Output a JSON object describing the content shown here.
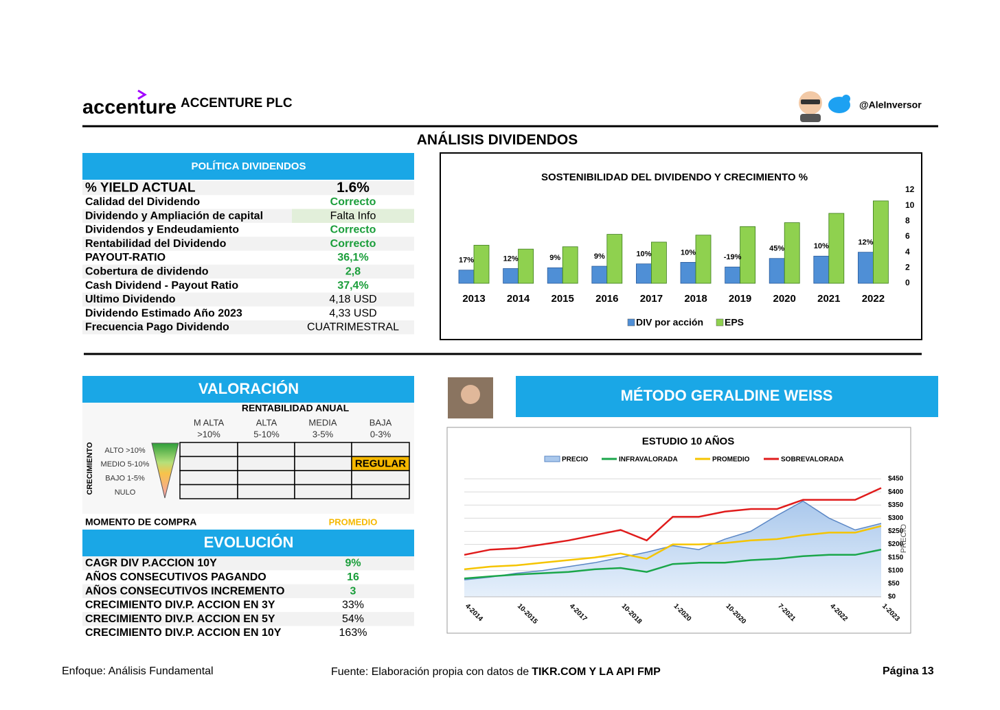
{
  "header": {
    "logo": "accenture",
    "company": "ACCENTURE PLC",
    "handle": "@AleInversor",
    "title": "ANÁLISIS DIVIDENDOS"
  },
  "policy": {
    "title": "POLÍTICA DIVIDENDOS",
    "rows": [
      [
        "% YIELD ACTUAL",
        "1.6%"
      ],
      [
        "Calidad del Dividendo",
        "Correcto"
      ],
      [
        "Dividendo y Ampliación de capital",
        "Falta Info"
      ],
      [
        "Dividendos y Endeudamiento",
        "Correcto"
      ],
      [
        "Rentabilidad del Dividendo",
        "Correcto"
      ],
      [
        "PAYOUT-RATIO",
        "36,1%"
      ],
      [
        "Cobertura de dividendo",
        "2,8"
      ],
      [
        "Cash Dividend - Payout Ratio",
        "37,4%"
      ],
      [
        "Ultimo Dividendo",
        "4,18 USD"
      ],
      [
        "Dividendo Estimado Año 2023",
        "4,33 USD"
      ],
      [
        "Frecuencia Pago Dividendo",
        "CUATRIMESTRAL"
      ]
    ]
  },
  "chart_data": [
    {
      "type": "bar",
      "title": "SOSTENIBILIDAD DEL DIVIDENDO Y CRECIMIENTO %",
      "categories": [
        "2013",
        "2014",
        "2015",
        "2016",
        "2017",
        "2018",
        "2019",
        "2020",
        "2021",
        "2022"
      ],
      "series": [
        {
          "name": "DIV por acción",
          "color": "#4f8fd6",
          "values": [
            1.7,
            1.9,
            2.0,
            2.2,
            2.5,
            2.7,
            2.1,
            3.2,
            3.5,
            4.0
          ]
        },
        {
          "name": "EPS",
          "color": "#8fd14f",
          "values": [
            4.9,
            4.4,
            4.7,
            6.3,
            5.3,
            6.2,
            7.3,
            7.8,
            9.0,
            10.6
          ]
        }
      ],
      "growth_labels": [
        "17%",
        "12%",
        "9%",
        "9%",
        "10%",
        "10%",
        "-19%",
        "45%",
        "10%",
        "12%"
      ],
      "ylim": [
        0,
        12
      ],
      "yticks": [
        0,
        2,
        4,
        6,
        8,
        10,
        12
      ]
    },
    {
      "type": "line",
      "title": "ESTUDIO 10 AÑOS",
      "categories": [
        "4-2014",
        null,
        "10-2015",
        null,
        "4-2017",
        null,
        "10-2018",
        null,
        "1-2020",
        null,
        "10-2020",
        null,
        "7-2021",
        null,
        "4-2022",
        null,
        "1-2023"
      ],
      "series": [
        {
          "name": "PRECIO",
          "color": "#5b87c5",
          "fill": true,
          "values": [
            65,
            75,
            90,
            100,
            115,
            130,
            150,
            170,
            195,
            180,
            220,
            250,
            310,
            365,
            300,
            255,
            280
          ]
        },
        {
          "name": "INFRAVALORADA",
          "color": "#1aa64a",
          "values": [
            70,
            78,
            85,
            90,
            95,
            105,
            110,
            95,
            125,
            130,
            130,
            140,
            145,
            155,
            160,
            160,
            180
          ]
        },
        {
          "name": "PROMEDIO",
          "color": "#f5c400",
          "values": [
            105,
            115,
            120,
            130,
            140,
            150,
            165,
            145,
            200,
            200,
            205,
            215,
            220,
            235,
            245,
            245,
            270
          ]
        },
        {
          "name": "SOBREVALORADA",
          "color": "#e01b1b",
          "values": [
            160,
            180,
            185,
            200,
            215,
            235,
            255,
            215,
            305,
            305,
            325,
            335,
            335,
            370,
            370,
            370,
            415
          ]
        }
      ],
      "ylim": [
        0,
        450
      ],
      "yticks": [
        {
          "value": 0,
          "label": "$0"
        },
        {
          "value": 50,
          "label": "$50"
        },
        {
          "value": 100,
          "label": "$100"
        },
        {
          "value": 150,
          "label": "$150"
        },
        {
          "value": 200,
          "label": "$200"
        },
        {
          "value": 250,
          "label": "$250"
        },
        {
          "value": 300,
          "label": "$300"
        },
        {
          "value": 350,
          "label": "$350"
        },
        {
          "value": 400,
          "label": "$400"
        },
        {
          "value": 450,
          "label": "$450"
        }
      ],
      "ylabel": "PRECIO",
      "grid": true
    }
  ],
  "valuation": {
    "title": "VALORACIÓN",
    "subtitle": "RENTABILIDAD ANUAL",
    "columns": [
      {
        "name": "M ALTA",
        "range": ">10%"
      },
      {
        "name": "ALTA",
        "range": "5-10%"
      },
      {
        "name": "MEDIA",
        "range": "3-5%"
      },
      {
        "name": "BAJA",
        "range": "0-3%"
      }
    ],
    "axis_label": "CRECIMIENTO",
    "rows": [
      "ALTO >10%",
      "MEDIO 5-10%",
      "BAJO 1-5%",
      "NULO"
    ],
    "grid": [
      [
        null,
        null,
        null,
        null
      ],
      [
        null,
        null,
        null,
        "REGULAR"
      ],
      [
        null,
        null,
        null,
        null
      ],
      [
        null,
        null,
        null,
        null
      ]
    ],
    "buy_label": "MOMENTO DE COMPRA",
    "buy_value": "PROMEDIO"
  },
  "evolution": {
    "title": "EVOLUCIÓN",
    "rows": [
      [
        "CAGR DIV P.ACCION 10Y",
        "9%"
      ],
      [
        "AÑOS CONSECUTIVOS PAGANDO",
        "16"
      ],
      [
        "AÑOS CONSECUTIVOS INCREMENTO",
        "3"
      ],
      [
        "CRECIMIENTO DIV.P. ACCION EN 3Y",
        "33%"
      ],
      [
        "CRECIMIENTO DIV.P. ACCION EN 5Y",
        "54%"
      ],
      [
        "CRECIMIENTO DIV.P. ACCION EN 10Y",
        "163%"
      ]
    ]
  },
  "weiss": {
    "title": "MÉTODO GERALDINE WEISS"
  },
  "footer": {
    "left": "Enfoque: Análisis Fundamental",
    "source": "Fuente: Elaboración propia con datos de ",
    "source_bold": "TIKR.COM Y LA API FMP",
    "page": "Página 13"
  }
}
